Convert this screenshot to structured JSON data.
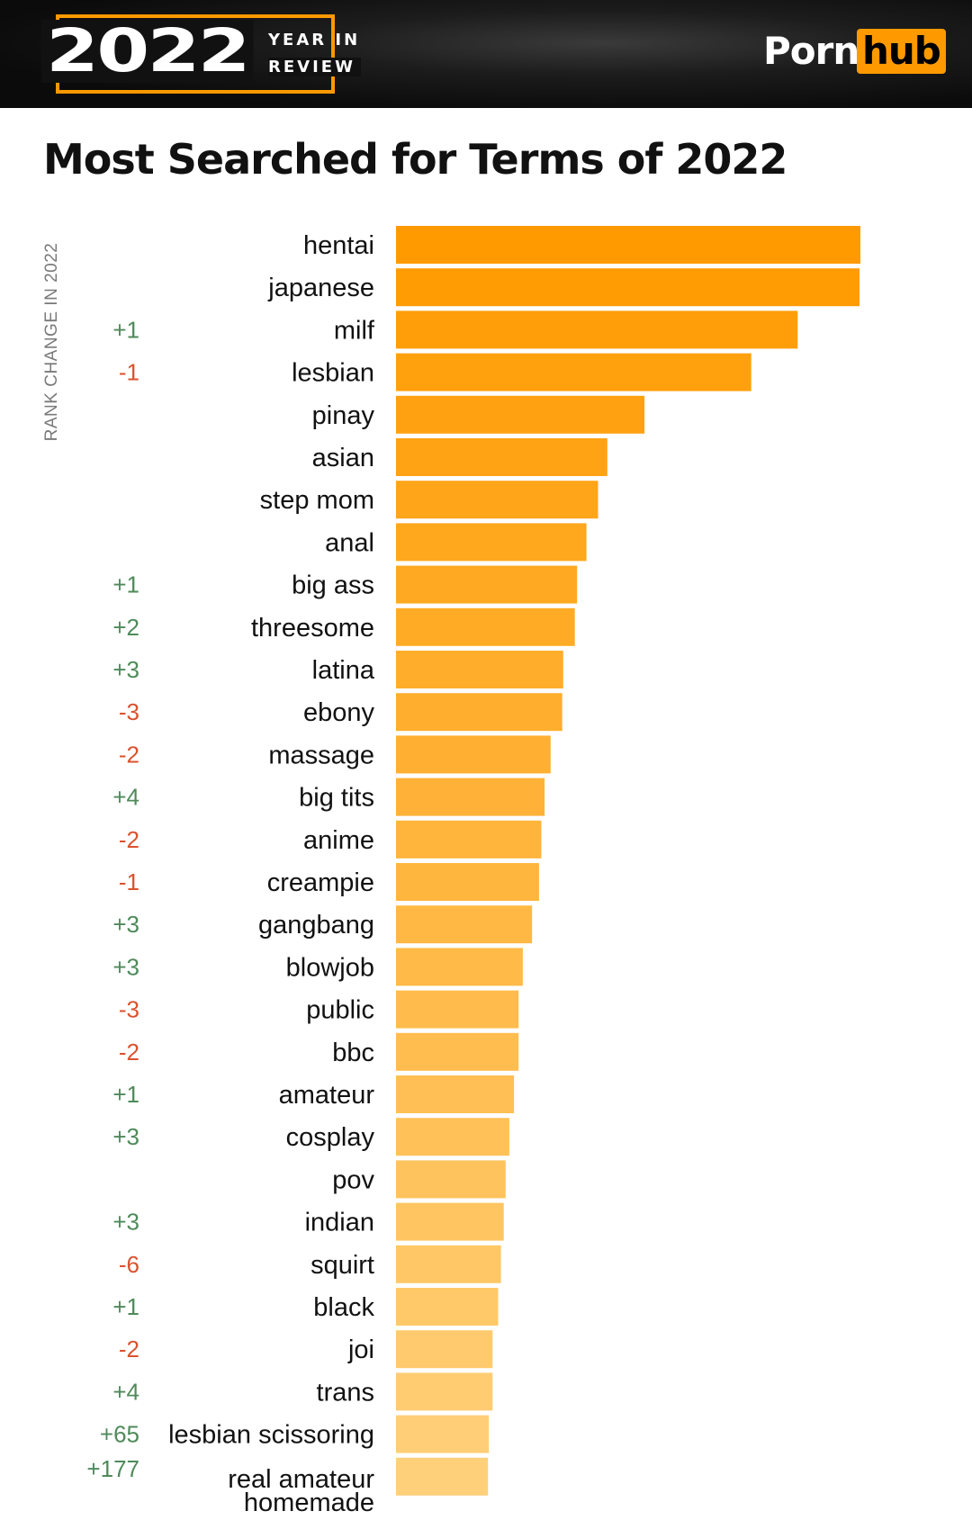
{
  "header": {
    "year": "2022",
    "year_in": "YEAR IN",
    "review": "REVIEW",
    "logo_left": "Porn",
    "logo_right": "hub"
  },
  "colors": {
    "accent": "#ff9900",
    "bar_start": "#ff9a00",
    "bar_end": "#ffd07a",
    "positive": "#4f8a5b",
    "negative": "#d9532f",
    "header_bg": "#111111"
  },
  "chart_data": {
    "type": "bar",
    "orientation": "horizontal",
    "title": "Most Searched for Terms of 2022",
    "rank_change_label": "RANK CHANGE IN 2022",
    "grid": false,
    "categories": [
      "hentai",
      "japanese",
      "milf",
      "lesbian",
      "pinay",
      "asian",
      "step mom",
      "anal",
      "big ass",
      "threesome",
      "latina",
      "ebony",
      "massage",
      "big tits",
      "anime",
      "creampie",
      "gangbang",
      "blowjob",
      "public",
      "bbc",
      "amateur",
      "cosplay",
      "pov",
      "indian",
      "squirt",
      "black",
      "joi",
      "trans",
      "lesbian scissoring",
      "real amateur homemade"
    ],
    "values": [
      100,
      99.8,
      86.5,
      76.5,
      53.5,
      45.5,
      43.5,
      41.0,
      39.0,
      38.5,
      36.0,
      35.8,
      33.3,
      32.0,
      31.3,
      30.8,
      29.3,
      27.3,
      26.4,
      26.4,
      25.4,
      24.4,
      23.6,
      23.2,
      22.6,
      22.0,
      20.8,
      20.8,
      20.0,
      19.8
    ],
    "rank_changes": [
      "",
      "",
      "+1",
      "-1",
      "",
      "",
      "",
      "",
      "+1",
      "+2",
      "+3",
      "-3",
      "-2",
      "+4",
      "-2",
      "-1",
      "+3",
      "+3",
      "-3",
      "-2",
      "+1",
      "+3",
      "",
      "+3",
      "-6",
      "+1",
      "-2",
      "+4",
      "+65",
      "+177"
    ]
  }
}
